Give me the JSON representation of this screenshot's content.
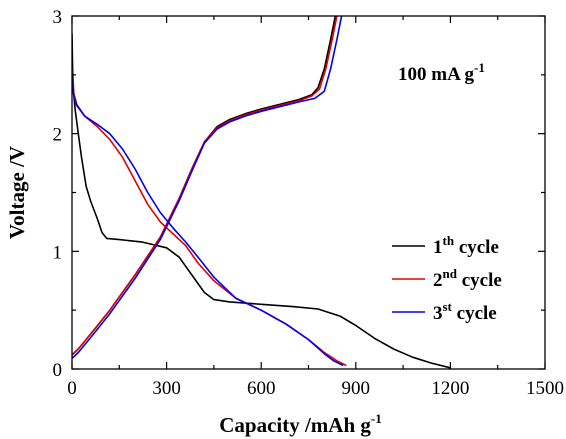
{
  "chart_data": {
    "type": "line",
    "title": "",
    "xlabel": "Capacity /mAh g",
    "xlabel_sup": "-1",
    "ylabel": "Voltage /V",
    "xlim": [
      0,
      1500
    ],
    "ylim": [
      0,
      3
    ],
    "xticks": [
      0,
      300,
      600,
      900,
      1200,
      1500
    ],
    "yticks": [
      0,
      1,
      2,
      3
    ],
    "grid": false,
    "legend_position": "lower-right",
    "annotation": {
      "text": "100 mA g",
      "sup": "-1"
    },
    "series": [
      {
        "name": "1th cycle",
        "name_base": "1",
        "name_sup": "th",
        "name_rest": " cycle",
        "color": "#000000",
        "curves": [
          [
            [
              0,
              2.85
            ],
            [
              2,
              2.55
            ],
            [
              5,
              2.35
            ],
            [
              10,
              2.2
            ],
            [
              20,
              2.0
            ],
            [
              30,
              1.8
            ],
            [
              45,
              1.55
            ],
            [
              60,
              1.42
            ],
            [
              80,
              1.28
            ],
            [
              95,
              1.16
            ],
            [
              110,
              1.11
            ],
            [
              150,
              1.1
            ],
            [
              220,
              1.08
            ],
            [
              300,
              1.03
            ],
            [
              340,
              0.95
            ],
            [
              380,
              0.8
            ],
            [
              420,
              0.65
            ],
            [
              450,
              0.59
            ],
            [
              500,
              0.57
            ],
            [
              600,
              0.55
            ],
            [
              700,
              0.53
            ],
            [
              780,
              0.51
            ],
            [
              850,
              0.45
            ],
            [
              900,
              0.37
            ],
            [
              960,
              0.26
            ],
            [
              1020,
              0.17
            ],
            [
              1080,
              0.1
            ],
            [
              1140,
              0.05
            ],
            [
              1200,
              0.01
            ]
          ],
          [
            [
              0,
              0.12
            ],
            [
              20,
              0.17
            ],
            [
              60,
              0.3
            ],
            [
              120,
              0.5
            ],
            [
              200,
              0.8
            ],
            [
              280,
              1.12
            ],
            [
              340,
              1.45
            ],
            [
              380,
              1.7
            ],
            [
              420,
              1.93
            ],
            [
              460,
              2.06
            ],
            [
              500,
              2.12
            ],
            [
              550,
              2.17
            ],
            [
              600,
              2.21
            ],
            [
              660,
              2.25
            ],
            [
              720,
              2.29
            ],
            [
              760,
              2.33
            ],
            [
              780,
              2.39
            ],
            [
              800,
              2.55
            ],
            [
              820,
              2.8
            ],
            [
              835,
              3.0
            ]
          ]
        ]
      },
      {
        "name": "2nd cycle",
        "name_base": "2",
        "name_sup": "nd",
        "name_rest": " cycle",
        "color": "#e00000",
        "curves": [
          [
            [
              0,
              2.55
            ],
            [
              5,
              2.35
            ],
            [
              15,
              2.25
            ],
            [
              40,
              2.15
            ],
            [
              80,
              2.06
            ],
            [
              120,
              1.95
            ],
            [
              160,
              1.8
            ],
            [
              200,
              1.6
            ],
            [
              240,
              1.4
            ],
            [
              280,
              1.25
            ],
            [
              320,
              1.15
            ],
            [
              360,
              1.05
            ],
            [
              400,
              0.9
            ],
            [
              450,
              0.75
            ],
            [
              520,
              0.6
            ],
            [
              600,
              0.5
            ],
            [
              680,
              0.38
            ],
            [
              750,
              0.25
            ],
            [
              800,
              0.14
            ],
            [
              840,
              0.07
            ],
            [
              870,
              0.03
            ]
          ],
          [
            [
              0,
              0.12
            ],
            [
              20,
              0.17
            ],
            [
              60,
              0.3
            ],
            [
              120,
              0.5
            ],
            [
              200,
              0.8
            ],
            [
              280,
              1.12
            ],
            [
              340,
              1.45
            ],
            [
              380,
              1.7
            ],
            [
              420,
              1.93
            ],
            [
              460,
              2.05
            ],
            [
              500,
              2.11
            ],
            [
              550,
              2.16
            ],
            [
              600,
              2.2
            ],
            [
              660,
              2.24
            ],
            [
              720,
              2.28
            ],
            [
              760,
              2.32
            ],
            [
              785,
              2.38
            ],
            [
              805,
              2.55
            ],
            [
              825,
              2.8
            ],
            [
              840,
              3.0
            ]
          ]
        ]
      },
      {
        "name": "3st cycle",
        "name_base": "3",
        "name_sup": "st",
        "name_rest": " cycle",
        "color": "#0000ee",
        "curves": [
          [
            [
              0,
              2.5
            ],
            [
              5,
              2.33
            ],
            [
              15,
              2.24
            ],
            [
              40,
              2.15
            ],
            [
              80,
              2.08
            ],
            [
              120,
              2.0
            ],
            [
              160,
              1.87
            ],
            [
              200,
              1.7
            ],
            [
              240,
              1.5
            ],
            [
              280,
              1.33
            ],
            [
              320,
              1.2
            ],
            [
              360,
              1.08
            ],
            [
              400,
              0.95
            ],
            [
              450,
              0.78
            ],
            [
              520,
              0.6
            ],
            [
              600,
              0.5
            ],
            [
              680,
              0.38
            ],
            [
              750,
              0.25
            ],
            [
              800,
              0.13
            ],
            [
              830,
              0.07
            ],
            [
              860,
              0.03
            ]
          ],
          [
            [
              0,
              0.09
            ],
            [
              20,
              0.14
            ],
            [
              60,
              0.27
            ],
            [
              120,
              0.47
            ],
            [
              200,
              0.77
            ],
            [
              280,
              1.1
            ],
            [
              340,
              1.43
            ],
            [
              380,
              1.68
            ],
            [
              420,
              1.92
            ],
            [
              460,
              2.04
            ],
            [
              500,
              2.1
            ],
            [
              550,
              2.15
            ],
            [
              600,
              2.19
            ],
            [
              660,
              2.23
            ],
            [
              720,
              2.27
            ],
            [
              770,
              2.3
            ],
            [
              800,
              2.36
            ],
            [
              820,
              2.55
            ],
            [
              840,
              2.8
            ],
            [
              855,
              3.0
            ]
          ]
        ]
      }
    ]
  }
}
